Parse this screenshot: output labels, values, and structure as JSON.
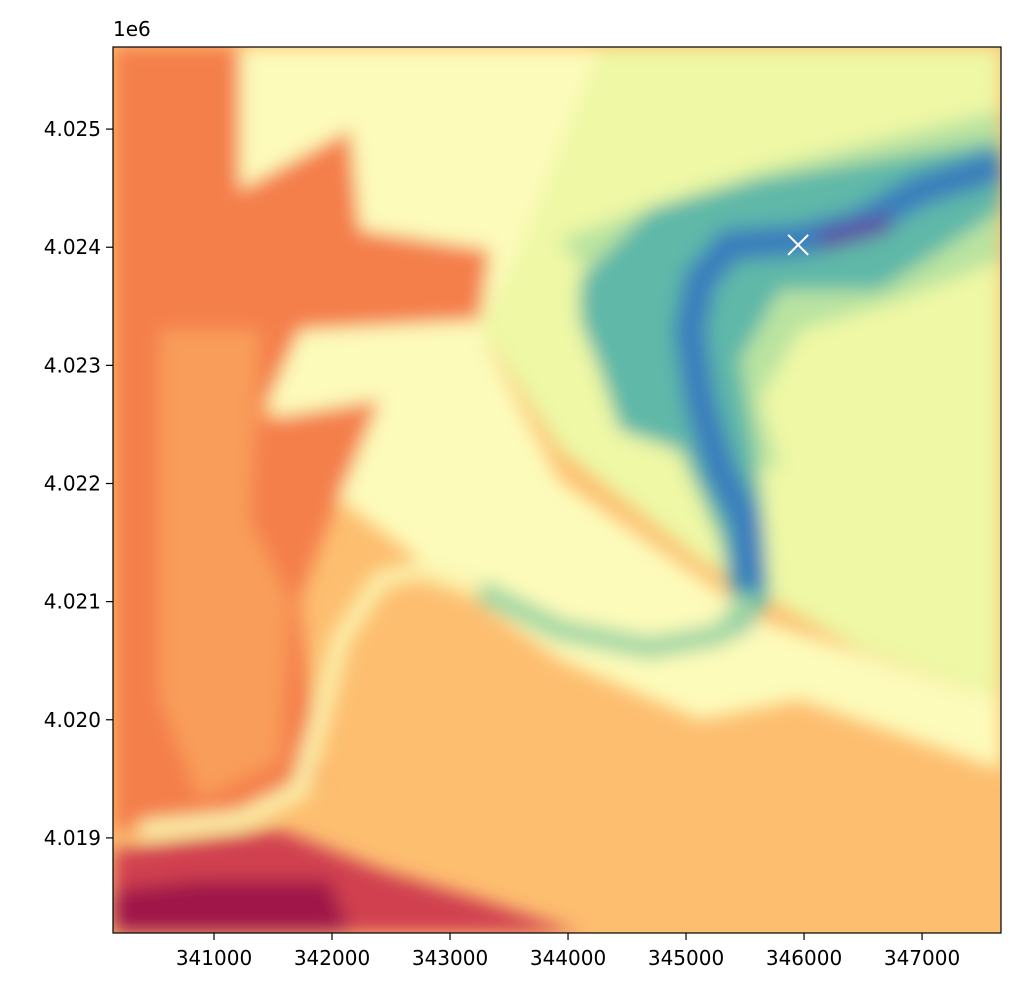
{
  "chart_data": {
    "type": "scatter",
    "x": [
      345950
    ],
    "values": [
      4024020
    ],
    "color": "#ffffff",
    "xlim": [
      340144,
      347669
    ],
    "ylim": [
      4018195,
      4025695
    ],
    "xticks": [
      341000,
      342000,
      343000,
      344000,
      345000,
      346000,
      347000
    ],
    "yticks": [
      {
        "value": 4019000,
        "label": "4.019"
      },
      {
        "value": 4020000,
        "label": "4.020"
      },
      {
        "value": 4021000,
        "label": "4.021"
      },
      {
        "value": 4022000,
        "label": "4.022"
      },
      {
        "value": 4023000,
        "label": "4.023"
      },
      {
        "value": 4024000,
        "label": "4.024"
      },
      {
        "value": 4025000,
        "label": "4.025"
      }
    ],
    "y_offset_label": "1e6"
  }
}
